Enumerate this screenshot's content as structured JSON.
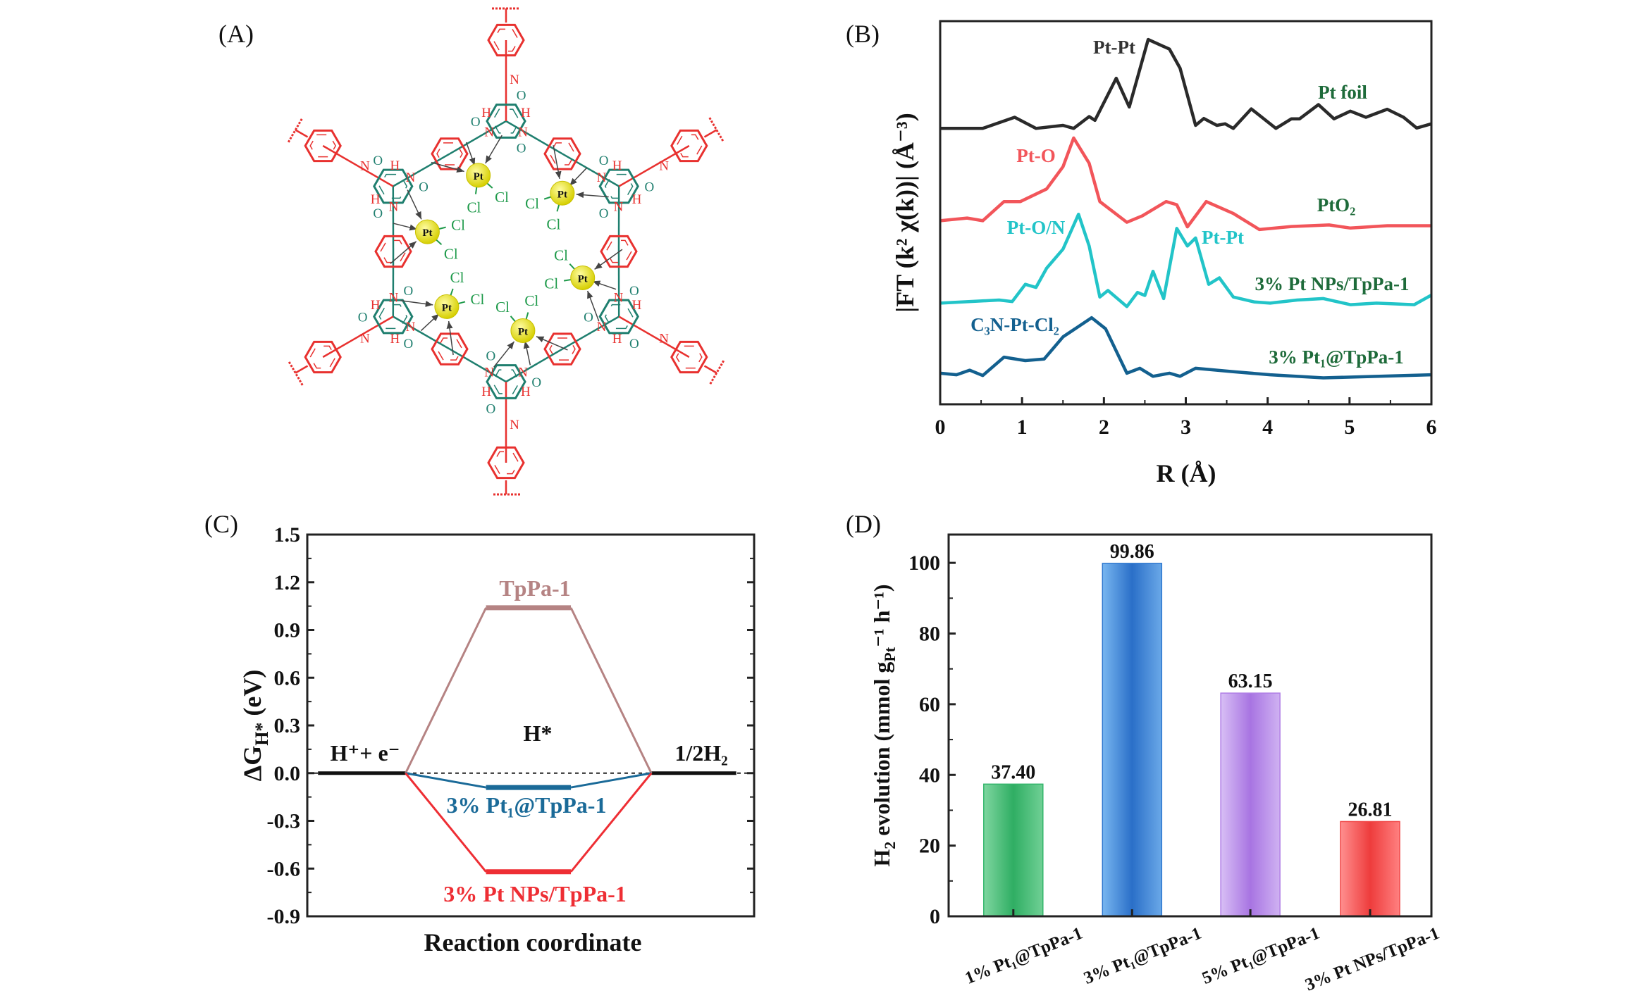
{
  "panels": {
    "a": "(A)",
    "b": "(B)",
    "c": "(C)",
    "d": "(D)"
  },
  "panel_a": {
    "atoms": {
      "pt": "Pt",
      "cl": "Cl",
      "n": "N",
      "h": "H",
      "o": "O"
    },
    "colors": {
      "node": "#1f7f6f",
      "linker": "#e8312f",
      "pt": "#e6e020",
      "cl": "#1e9a4a",
      "arrow": "#444444"
    }
  },
  "chart_data": [
    {
      "type": "line",
      "title": "",
      "xlabel": "R (Å)",
      "ylabel": "|FT (k² χ(k))| (Å⁻³)",
      "xlim": [
        0,
        6
      ],
      "xticks": [
        0,
        1,
        2,
        3,
        4,
        5,
        6
      ],
      "ylim": [
        0,
        100
      ],
      "yticks": [],
      "series": [
        {
          "name": "Pt foil",
          "color": "#2a2a2a",
          "points": [
            [
              0,
              72.0
            ],
            [
              0.52,
              72.0
            ],
            [
              0.91,
              74.9
            ],
            [
              1.17,
              72.0
            ],
            [
              1.5,
              72.8
            ],
            [
              1.63,
              72.0
            ],
            [
              1.82,
              75.1
            ],
            [
              1.89,
              74.1
            ],
            [
              2.15,
              85.1
            ],
            [
              2.31,
              77.6
            ],
            [
              2.54,
              95.2
            ],
            [
              2.8,
              92.7
            ],
            [
              2.93,
              87.7
            ],
            [
              3.12,
              72.8
            ],
            [
              3.22,
              74.6
            ],
            [
              3.38,
              72.8
            ],
            [
              3.48,
              73.2
            ],
            [
              3.58,
              72.0
            ],
            [
              3.8,
              77.1
            ],
            [
              4.1,
              72.0
            ],
            [
              4.29,
              74.5
            ],
            [
              4.39,
              74.5
            ],
            [
              4.62,
              78.2
            ],
            [
              4.81,
              74.5
            ],
            [
              5.01,
              76.5
            ],
            [
              5.2,
              74.9
            ],
            [
              5.46,
              77.0
            ],
            [
              5.66,
              74.9
            ],
            [
              5.82,
              72.1
            ],
            [
              6.0,
              73.2
            ]
          ]
        },
        {
          "name": "PtO₂",
          "color": "#f2555a",
          "points": [
            [
              0,
              47.9
            ],
            [
              0.33,
              48.6
            ],
            [
              0.52,
              47.9
            ],
            [
              0.78,
              52.9
            ],
            [
              0.98,
              52.9
            ],
            [
              1.3,
              56.2
            ],
            [
              1.5,
              62.0
            ],
            [
              1.63,
              69.5
            ],
            [
              1.82,
              62.9
            ],
            [
              1.95,
              52.9
            ],
            [
              2.28,
              47.5
            ],
            [
              2.47,
              49.2
            ],
            [
              2.76,
              52.9
            ],
            [
              2.89,
              52.1
            ],
            [
              3.02,
              46.3
            ],
            [
              3.25,
              52.9
            ],
            [
              3.58,
              49.8
            ],
            [
              3.9,
              45.6
            ],
            [
              4.29,
              46.4
            ],
            [
              4.75,
              46.8
            ],
            [
              5.01,
              46.0
            ],
            [
              5.46,
              46.6
            ],
            [
              6.0,
              46.6
            ]
          ]
        },
        {
          "name": "3% Pt NPs/TpPa-1",
          "color": "#22c4c8",
          "points": [
            [
              0,
              26.4
            ],
            [
              0.72,
              27.2
            ],
            [
              0.88,
              26.8
            ],
            [
              1.04,
              31.3
            ],
            [
              1.17,
              30.5
            ],
            [
              1.3,
              35.5
            ],
            [
              1.5,
              40.5
            ],
            [
              1.69,
              49.6
            ],
            [
              1.82,
              41.3
            ],
            [
              1.95,
              28.0
            ],
            [
              2.05,
              29.7
            ],
            [
              2.28,
              25.5
            ],
            [
              2.41,
              29.2
            ],
            [
              2.5,
              28.4
            ],
            [
              2.6,
              34.7
            ],
            [
              2.73,
              27.6
            ],
            [
              2.89,
              45.9
            ],
            [
              3.02,
              41.3
            ],
            [
              3.12,
              43.4
            ],
            [
              3.28,
              31.3
            ],
            [
              3.41,
              33.0
            ],
            [
              3.58,
              28.0
            ],
            [
              3.84,
              26.7
            ],
            [
              4.03,
              26.4
            ],
            [
              4.36,
              27.2
            ],
            [
              4.68,
              27.6
            ],
            [
              5.01,
              26.0
            ],
            [
              5.33,
              26.4
            ],
            [
              5.79,
              26.0
            ],
            [
              6.0,
              28.5
            ]
          ]
        },
        {
          "name": "3% Pt₁@TpPa-1",
          "color": "#13608f",
          "points": [
            [
              0,
              8.1
            ],
            [
              0.2,
              7.7
            ],
            [
              0.36,
              8.9
            ],
            [
              0.52,
              7.5
            ],
            [
              0.78,
              12.3
            ],
            [
              1.04,
              11.4
            ],
            [
              1.27,
              11.8
            ],
            [
              1.5,
              17.6
            ],
            [
              1.85,
              22.6
            ],
            [
              2.02,
              19.7
            ],
            [
              2.28,
              8.1
            ],
            [
              2.44,
              9.4
            ],
            [
              2.6,
              7.3
            ],
            [
              2.8,
              8.1
            ],
            [
              2.93,
              7.3
            ],
            [
              3.12,
              9.4
            ],
            [
              3.58,
              8.5
            ],
            [
              4.03,
              7.7
            ],
            [
              4.68,
              6.9
            ],
            [
              6.0,
              7.7
            ]
          ]
        }
      ],
      "annotations": {
        "pt_pt_foil": {
          "text": "Pt-Pt",
          "color": "#333333"
        },
        "pt_foil": {
          "text": "Pt foil",
          "color": "#1e6b3a"
        },
        "pt_o": {
          "text": "Pt-O",
          "color": "#f2555a"
        },
        "pto2": {
          "text": "PtO₂",
          "color": "#1e6b3a"
        },
        "pt_on": {
          "text": "Pt-O/N",
          "color": "#22c4c8"
        },
        "pt_pt_np": {
          "text": "Pt-Pt",
          "color": "#22c4c8"
        },
        "nps": {
          "text": "3% Pt NPs/TpPa-1",
          "color": "#1e6b3a"
        },
        "c3n": {
          "text": "C₃N-Pt-Cl₂",
          "color": "#13608f"
        },
        "pt1": {
          "text": "3% Pt₁@TpPa-1",
          "color": "#1e6b3a"
        }
      }
    },
    {
      "type": "line",
      "title": "",
      "xlabel": "Reaction coordinate",
      "ylabel": {
        "main": "ΔG",
        "sub": "H*",
        "unit": " (eV)"
      },
      "ylim": [
        -0.9,
        1.5
      ],
      "yticks": [
        "-0.9",
        "-0.6",
        "-0.3",
        "0.0",
        "0.3",
        "0.6",
        "0.9",
        "1.2",
        "1.5"
      ],
      "states": [
        "H⁺+ e⁻",
        "H*",
        "1/2H₂"
      ],
      "series": [
        {
          "name": "TpPa-1",
          "color": "#b58383",
          "values": [
            0,
            1.04,
            0
          ]
        },
        {
          "name": "3% Pt₁@TpPa-1",
          "color": "#1a6a98",
          "values": [
            0,
            -0.09,
            0
          ]
        },
        {
          "name": "3% Pt NPs/TpPa-1",
          "color": "#ee2e34",
          "values": [
            0,
            -0.62,
            0
          ]
        }
      ],
      "reference_line": 0
    },
    {
      "type": "bar",
      "title": "",
      "xlabel": "",
      "ylabel": {
        "a": "H",
        "a_sub": "2",
        "b": " evolution (mmol g",
        "b_sub": "Pt",
        "c": "⁻¹ h⁻¹)"
      },
      "ylim": [
        0,
        108
      ],
      "yticks": [
        0,
        20,
        40,
        60,
        80,
        100
      ],
      "categories": [
        "1% Pt₁@TpPa-1",
        "3% Pt₁@TpPa-1",
        "5% Pt₁@TpPa-1",
        "3% Pt NPs/TpPa-1"
      ],
      "values": [
        37.4,
        99.86,
        63.15,
        26.81
      ],
      "value_labels": [
        "37.40",
        "99.86",
        "63.15",
        "26.81"
      ],
      "colors": [
        "#33b56b",
        "#2f78cf",
        "#b07ee6",
        "#f04848"
      ]
    }
  ]
}
